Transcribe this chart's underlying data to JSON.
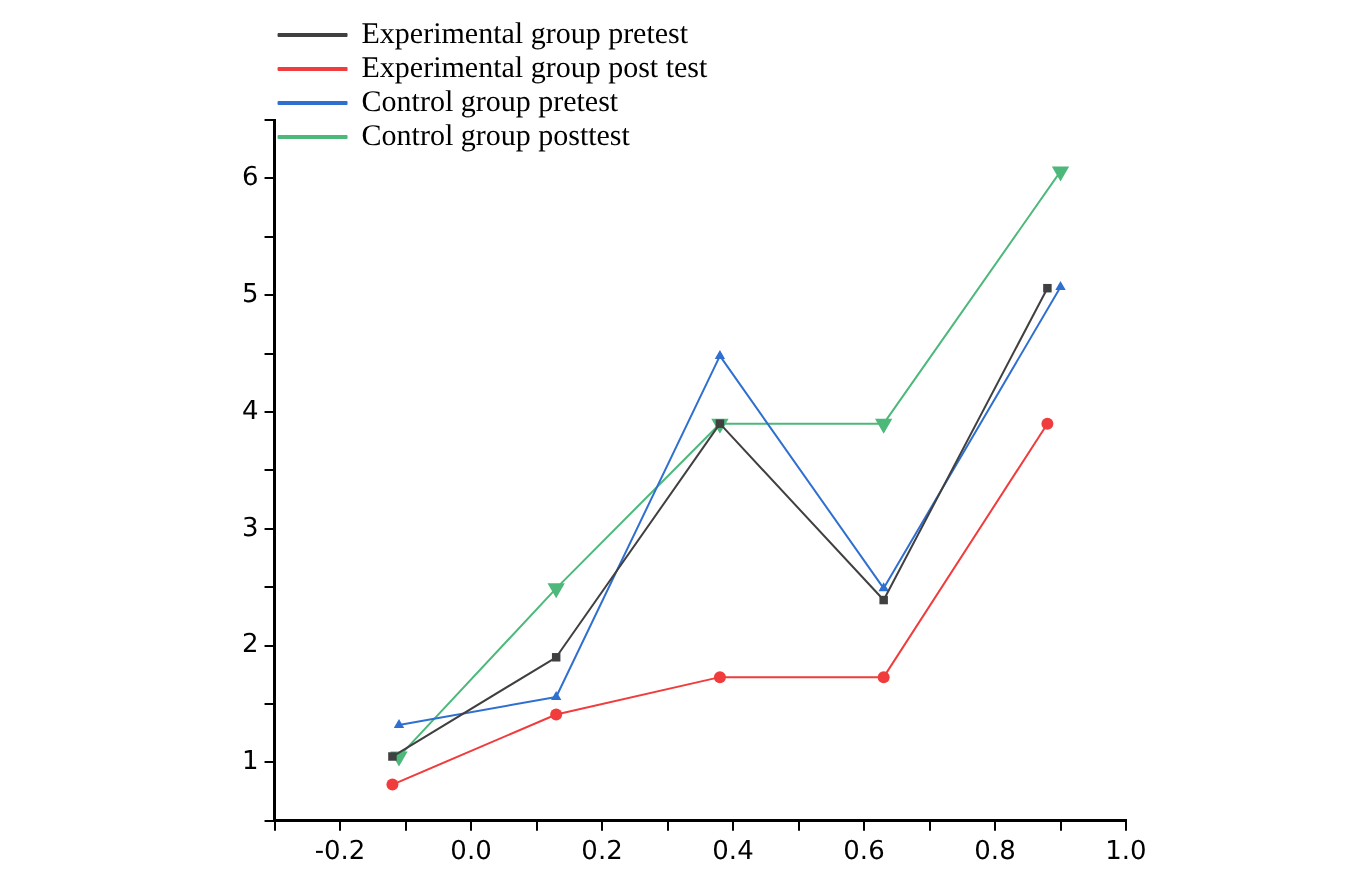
{
  "chart_data": {
    "type": "line",
    "legend": "top left",
    "grid": false,
    "line_style": "solid",
    "xlim": [
      -0.3,
      1.0
    ],
    "xticks": [
      {
        "value": -0.3,
        "label": null
      },
      -0.2,
      {
        "value": -0.1,
        "label": null
      },
      {
        "value": 0,
        "label": "0.0"
      },
      {
        "value": 0.1,
        "label": null
      },
      0.2,
      {
        "value": 0.3,
        "label": null
      },
      0.4,
      {
        "value": 0.5,
        "label": null
      },
      0.6,
      {
        "value": 0.7,
        "label": null
      },
      0.8,
      {
        "value": 0.9,
        "label": null
      },
      {
        "value": 1,
        "label": "1.0"
      }
    ],
    "ylim": [
      0.5,
      6.5
    ],
    "yticks": [
      {
        "value": 0.5,
        "label": null
      },
      1,
      {
        "value": 1.5,
        "label": null
      },
      2,
      {
        "value": 2.5,
        "label": null
      },
      3,
      {
        "value": 3.5,
        "label": null
      },
      4,
      {
        "value": 4.5,
        "label": null
      },
      5,
      {
        "value": 5.5,
        "label": null
      },
      6,
      {
        "value": 6.5,
        "label": null
      }
    ],
    "series": [
      {
        "name": "Experimental group pretest",
        "color": "#404040",
        "marker": "square",
        "x": [
          -0.12,
          0.13,
          0.38,
          0.63,
          0.88
        ],
        "values": [
          1.05,
          1.9,
          3.9,
          2.39,
          5.06
        ]
      },
      {
        "name": "Experimental group post test",
        "color": "#f03c3c",
        "marker": "circle",
        "x": [
          -0.12,
          0.13,
          0.38,
          0.63,
          0.88
        ],
        "values": [
          0.81,
          1.41,
          1.73,
          1.73,
          3.9
        ]
      },
      {
        "name": "Control group pretest",
        "color": "#2f6fd0",
        "marker": "triangle",
        "x": [
          -0.11,
          0.13,
          0.38,
          0.63,
          0.9
        ],
        "values": [
          1.32,
          1.56,
          4.48,
          2.49,
          5.07
        ]
      },
      {
        "name": "Control group posttest",
        "color": "#4cb87a",
        "marker": "triangle-down",
        "x": [
          -0.11,
          0.13,
          0.38,
          0.63,
          0.9
        ],
        "values": [
          1.05,
          2.49,
          3.9,
          3.9,
          6.06
        ]
      }
    ]
  }
}
